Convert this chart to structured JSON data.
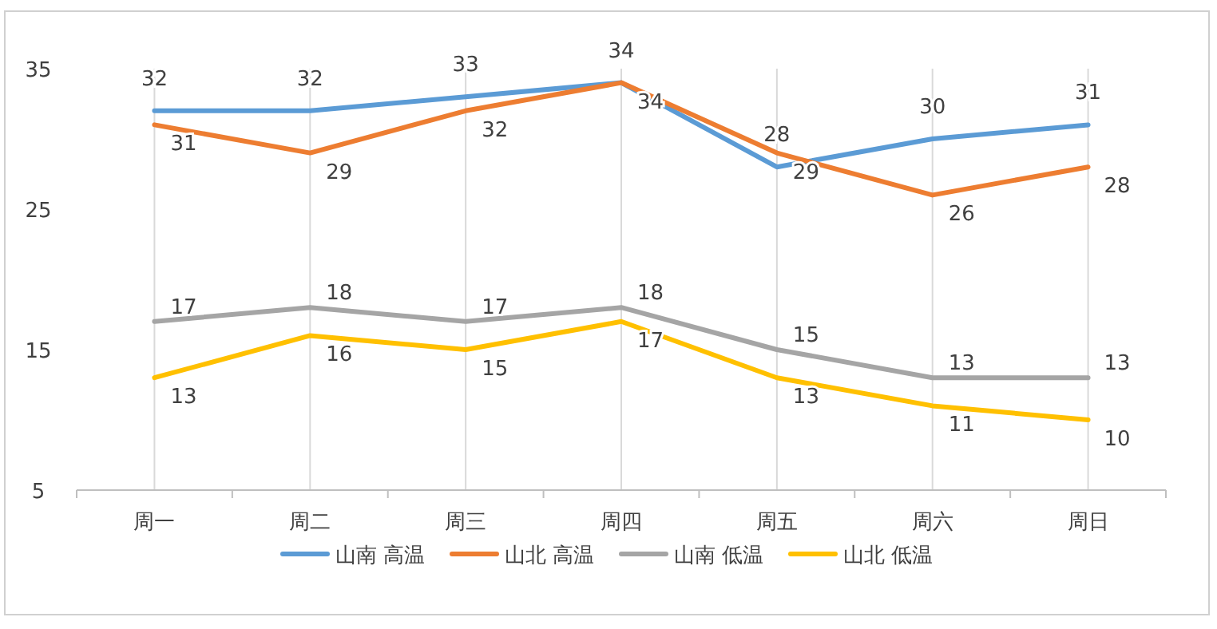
{
  "chart_data": {
    "type": "line",
    "categories": [
      "周一",
      "周二",
      "周三",
      "周四",
      "周五",
      "周六",
      "周日"
    ],
    "series": [
      {
        "name": "山南 高温",
        "color": "#5b9bd5",
        "values": [
          32,
          32,
          33,
          34,
          28,
          30,
          31
        ]
      },
      {
        "name": "山北 高温",
        "color": "#ed7d31",
        "values": [
          31,
          29,
          32,
          34,
          29,
          26,
          28
        ]
      },
      {
        "name": "山南 低温",
        "color": "#a5a5a5",
        "values": [
          17,
          18,
          17,
          18,
          15,
          13,
          13
        ]
      },
      {
        "name": "山北 低温",
        "color": "#ffc000",
        "values": [
          13,
          16,
          15,
          17,
          13,
          11,
          10
        ]
      }
    ],
    "ylim": [
      5,
      35
    ],
    "yticks": [
      5,
      15,
      25,
      35
    ],
    "grid": "x",
    "legend": "bottom",
    "data_labels": true,
    "marker": "none",
    "line_style": "solid"
  }
}
